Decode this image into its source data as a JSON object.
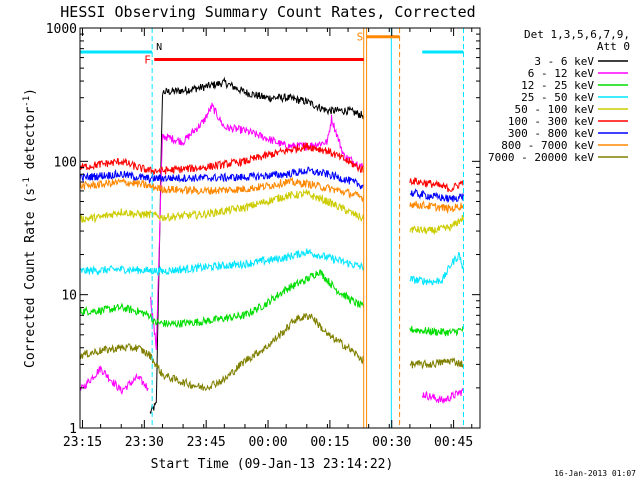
{
  "chart_data": {
    "type": "line",
    "title": "HESSI Observing Summary Count Rates, Corrected",
    "xlabel": "Start Time (09-Jan-13 23:14:22)",
    "ylabel": "Corrected Count Rate (s",
    "ylabel_sup1": "-1",
    "ylabel_mid": " detector",
    "ylabel_sup2": "-1",
    "ylabel_end": ")",
    "yscale": "log",
    "ylim": [
      1,
      1000
    ],
    "yticks": [
      {
        "value": 1,
        "label": "1"
      },
      {
        "value": 10,
        "label": "10"
      },
      {
        "value": 100,
        "label": "100"
      },
      {
        "value": 1000,
        "label": "1000"
      }
    ],
    "xlim_min": [
      0,
      97
    ],
    "xticks": [
      {
        "t": 0.6,
        "label": "23:15"
      },
      {
        "t": 15.6,
        "label": "23:30"
      },
      {
        "t": 30.6,
        "label": "23:45"
      },
      {
        "t": 45.6,
        "label": "00:00"
      },
      {
        "t": 60.6,
        "label": "00:15"
      },
      {
        "t": 75.6,
        "label": "00:30"
      },
      {
        "t": 90.6,
        "label": "00:45"
      }
    ],
    "legend_header": [
      "Det 1,3,5,6,7,9,",
      "Att 0"
    ],
    "legend_position": "right",
    "series": [
      {
        "name": "3 - 6 keV",
        "color": "#000000",
        "segments": [
          {
            "x": [
              17,
              18.5,
              20,
              25,
              30,
              35,
              40,
              45,
              50,
              55,
              60,
              65,
              68.8
            ],
            "y": [
              1.3,
              1.5,
              330,
              340,
              360,
              390,
              330,
              300,
              300,
              280,
              240,
              240,
              220
            ]
          }
        ]
      },
      {
        "name": "6 - 12 keV",
        "color": "#ff00ff",
        "segments": [
          {
            "x": [
              0,
              5,
              10,
              14,
              16.5
            ],
            "y": [
              1.9,
              2.8,
              1.9,
              2.4,
              2
            ]
          },
          {
            "x": [
              17,
              18.5,
              20,
              25,
              30,
              32,
              35,
              40,
              45,
              50,
              55,
              60,
              61,
              64,
              68.8
            ],
            "y": [
              10,
              4,
              155,
              140,
              200,
              260,
              180,
              170,
              150,
              130,
              130,
              140,
              210,
              110,
              90
            ]
          },
          {
            "x": [
              83,
              88,
              93
            ],
            "y": [
              1.8,
              1.6,
              1.9
            ]
          }
        ]
      },
      {
        "name": "12 - 25 keV",
        "color": "#00dd00",
        "segments": [
          {
            "x": [
              0,
              5,
              10,
              14,
              17,
              18,
              22,
              30,
              40,
              45,
              50,
              55,
              58,
              62,
              66,
              68.8
            ],
            "y": [
              7.5,
              7.6,
              8,
              7.5,
              7,
              6.2,
              6,
              6.3,
              7,
              8.5,
              11,
              13,
              15,
              11,
              9,
              8
            ]
          },
          {
            "x": [
              80,
              85,
              90,
              93
            ],
            "y": [
              5.5,
              5.3,
              5.2,
              5.5
            ]
          }
        ]
      },
      {
        "name": "25 - 50 keV",
        "color": "#00e5ff",
        "segments": [
          {
            "x": [
              0,
              10,
              20,
              30,
              40,
              50,
              55,
              60,
              68.8
            ],
            "y": [
              15,
              15.5,
              15,
              16,
              17,
              19,
              21,
              19,
              16
            ]
          },
          {
            "x": [
              80,
              86,
              88,
              90,
              92,
              93
            ],
            "y": [
              13,
              12.5,
              13,
              17,
              20,
              15
            ]
          }
        ]
      },
      {
        "name": "50 - 100 keV",
        "color": "#cccc00",
        "segments": [
          {
            "x": [
              0,
              5,
              10,
              14,
              17,
              20,
              30,
              40,
              50,
              55,
              60,
              68.8
            ],
            "y": [
              37,
              38,
              42,
              40,
              40,
              38,
              40,
              45,
              55,
              57,
              50,
              37
            ]
          },
          {
            "x": [
              80,
              85,
              90,
              93
            ],
            "y": [
              31,
              30,
              32,
              38
            ]
          }
        ]
      },
      {
        "name": "100 - 300 keV",
        "color": "#ff0000",
        "segments": [
          {
            "x": [
              0,
              5,
              10,
              14,
              17,
              20,
              30,
              40,
              45,
              50,
              55,
              60,
              65,
              68.8
            ],
            "y": [
              90,
              95,
              100,
              90,
              85,
              85,
              90,
              100,
              110,
              120,
              130,
              120,
              100,
              85
            ]
          },
          {
            "x": [
              80,
              85,
              90,
              93
            ],
            "y": [
              72,
              68,
              62,
              70
            ]
          }
        ]
      },
      {
        "name": "300 - 800 keV",
        "color": "#0000ff",
        "segments": [
          {
            "x": [
              0,
              5,
              10,
              14,
              17,
              20,
              30,
              40,
              50,
              55,
              60,
              65,
              68.8
            ],
            "y": [
              75,
              78,
              80,
              76,
              74,
              75,
              75,
              76,
              80,
              85,
              80,
              72,
              65
            ]
          },
          {
            "x": [
              80,
              85,
              90,
              93
            ],
            "y": [
              58,
              55,
              52,
              55
            ]
          }
        ]
      },
      {
        "name": "800 - 7000 keV",
        "color": "#ff8800",
        "segments": [
          {
            "x": [
              0,
              5,
              10,
              14,
              17,
              20,
              30,
              40,
              45,
              50,
              55,
              60,
              65,
              68.8
            ],
            "y": [
              65,
              67,
              70,
              68,
              65,
              62,
              60,
              62,
              65,
              70,
              68,
              63,
              58,
              53
            ]
          },
          {
            "x": [
              80,
              85,
              90,
              93
            ],
            "y": [
              48,
              46,
              44,
              47
            ]
          }
        ]
      },
      {
        "name": "7000 - 20000 keV",
        "color": "#808000",
        "segments": [
          {
            "x": [
              0,
              5,
              10,
              14,
              17,
              20,
              25,
              30,
              35,
              40,
              45,
              50,
              52,
              56,
              60,
              65,
              68.8
            ],
            "y": [
              3.5,
              3.8,
              4,
              4,
              3.5,
              2.5,
              2.2,
              2,
              2.3,
              3.2,
              4,
              5.5,
              6.5,
              7,
              5,
              4,
              3.2
            ]
          },
          {
            "x": [
              80,
              85,
              90,
              93
            ],
            "y": [
              3,
              3,
              3.2,
              3
            ]
          }
        ]
      }
    ],
    "intervals": [
      {
        "label": "F",
        "color": "#ff0000",
        "x0": 18,
        "x1": 68.8,
        "y": 580
      },
      {
        "label": "S",
        "color": "#ff8800",
        "x0": 69.5,
        "x1": 77.5,
        "y": 860
      }
    ],
    "markers": [
      {
        "label": "N",
        "color": "#00e5ff",
        "x": 17.5,
        "x_end": 0,
        "y": 660
      },
      {
        "label": "",
        "color": "#00e5ff",
        "x": 93,
        "x_end": 83,
        "y": 660
      }
    ],
    "vlines_solid": [
      {
        "x": 68.8,
        "color": "#ff8800"
      },
      {
        "x": 69.5,
        "color": "#ff8800"
      },
      {
        "x": 75.5,
        "color": "#00e5ff"
      }
    ],
    "vlines_dashed": [
      {
        "x": 17.5,
        "color": "#00e5ff"
      },
      {
        "x": 77.5,
        "color": "#ff8800"
      },
      {
        "x": 93,
        "color": "#00e5ff"
      }
    ]
  },
  "footer_date": "16-Jan-2013 01:07"
}
